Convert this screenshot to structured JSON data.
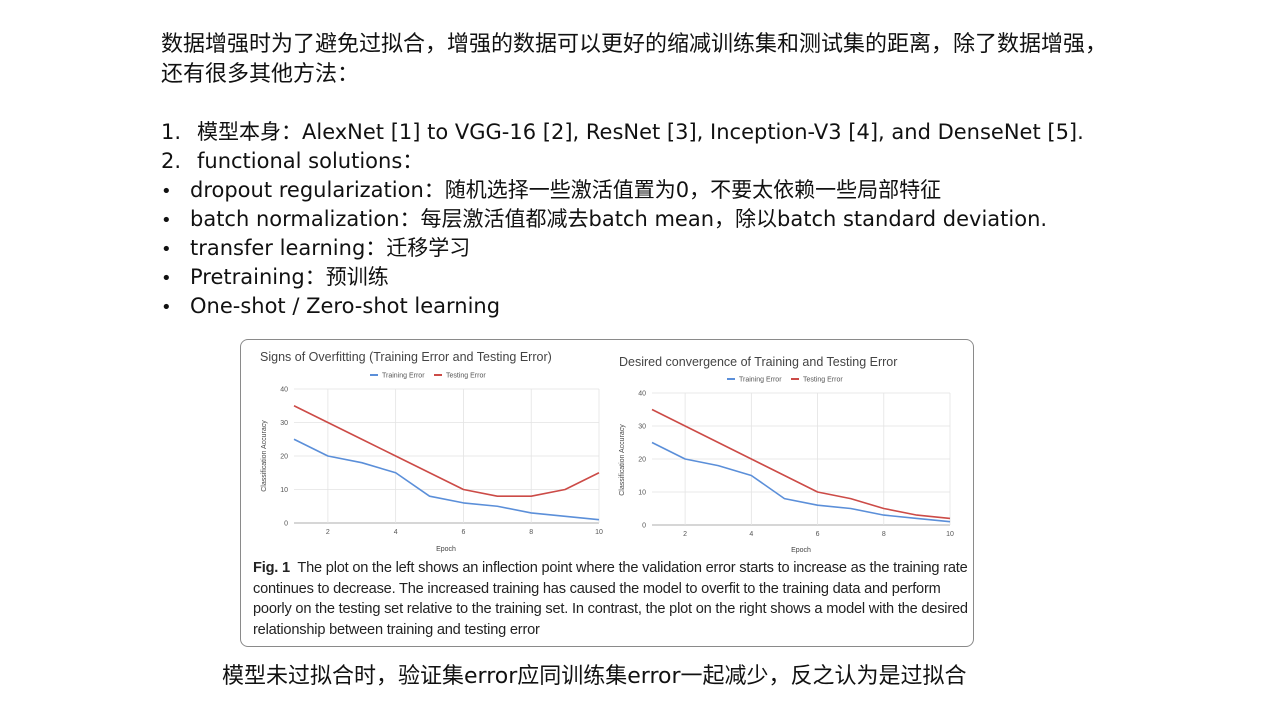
{
  "intro": {
    "text": "数据增强时为了避免过拟合，增强的数据可以更好的缩减训练集和测试集的距离，除了数据增强，还有很多其他方法："
  },
  "list": {
    "items": [
      {
        "marker": "1.",
        "text": "模型本身：AlexNet [1] to VGG-16 [2], ResNet [3], Inception-V3 [4], and DenseNet [5]."
      },
      {
        "marker": "2.",
        "text": "functional solutions："
      },
      {
        "marker": "•",
        "text": "dropout regularization：随机选择一些激活值置为0，不要太依赖一些局部特征"
      },
      {
        "marker": "•",
        "text": "batch normalization：每层激活值都减去batch mean，除以batch standard deviation."
      },
      {
        "marker": "•",
        "text": "transfer learning：迁移学习"
      },
      {
        "marker": "•",
        "text": "Pretraining：预训练"
      },
      {
        "marker": "•",
        "text": "One-shot / Zero-shot learning"
      }
    ]
  },
  "figure": {
    "caption_label": "Fig. 1",
    "caption_text": "The plot on the left shows an inflection point where the validation error starts to increase as the training rate continues to decrease. The increased training has caused the model to overfit to the training data and perform poorly on the testing set relative to the training set. In contrast, the plot on the right shows a model with the desired relationship between training and testing error"
  },
  "conclusion": {
    "text": "模型未过拟合时，验证集error应同训练集error一起减少，反之认为是过拟合"
  },
  "colors": {
    "training": "#5b8fd9",
    "testing": "#cc4b47",
    "grid": "#e3e3e3",
    "axis": "#bdbdbd"
  },
  "chart_data": [
    {
      "type": "line",
      "title": "Signs of Overfitting (Training Error and Testing Error)",
      "xlabel": "Epoch",
      "ylabel": "Classification Accuracy",
      "x": [
        1,
        2,
        3,
        4,
        5,
        6,
        7,
        8,
        9,
        10
      ],
      "series": [
        {
          "name": "Training Error",
          "color": "#5b8fd9",
          "values": [
            25,
            20,
            18,
            15,
            8,
            6,
            5,
            3,
            2,
            1
          ]
        },
        {
          "name": "Testing Error",
          "color": "#cc4b47",
          "values": [
            35,
            30,
            25,
            20,
            15,
            10,
            8,
            8,
            10,
            15
          ]
        }
      ],
      "xticks": [
        2,
        4,
        6,
        8,
        10
      ],
      "yticks": [
        0,
        10,
        20,
        30,
        40
      ],
      "xlim": [
        1,
        10
      ],
      "ylim": [
        0,
        40
      ],
      "grid": true,
      "legend_position": "top"
    },
    {
      "type": "line",
      "title": "Desired convergence of Training and Testing Error",
      "xlabel": "Epoch",
      "ylabel": "Classification Accuracy",
      "x": [
        1,
        2,
        3,
        4,
        5,
        6,
        7,
        8,
        9,
        10
      ],
      "series": [
        {
          "name": "Training Error",
          "color": "#5b8fd9",
          "values": [
            25,
            20,
            18,
            15,
            8,
            6,
            5,
            3,
            2,
            1
          ]
        },
        {
          "name": "Testing Error",
          "color": "#cc4b47",
          "values": [
            35,
            30,
            25,
            20,
            15,
            10,
            8,
            5,
            3,
            2
          ]
        }
      ],
      "xticks": [
        2,
        4,
        6,
        8,
        10
      ],
      "yticks": [
        0,
        10,
        20,
        30,
        40
      ],
      "xlim": [
        1,
        10
      ],
      "ylim": [
        0,
        40
      ],
      "grid": true,
      "legend_position": "top"
    }
  ]
}
